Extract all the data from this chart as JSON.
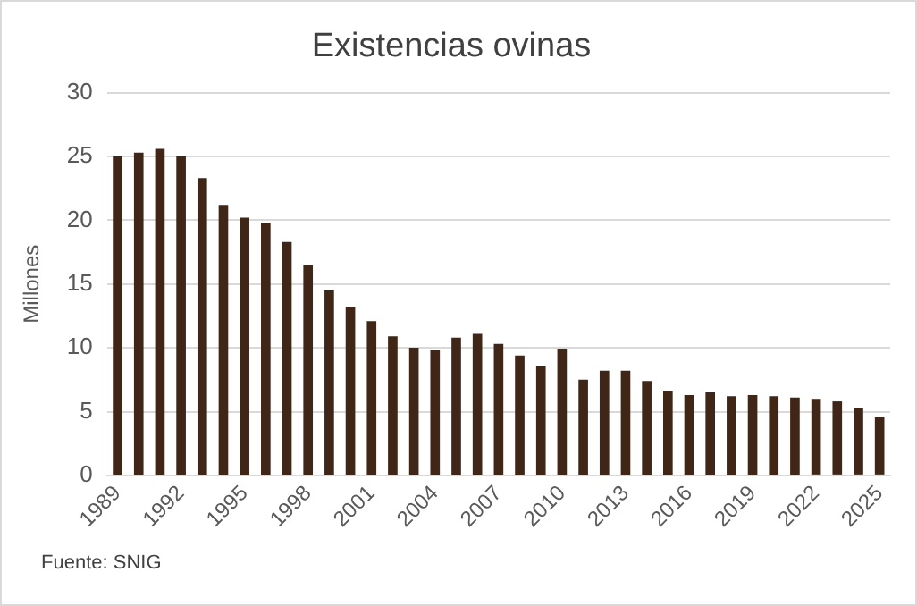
{
  "chart_data": {
    "type": "bar",
    "title": "Existencias ovinas",
    "ylabel": "Millones",
    "categories": [
      "1989",
      null,
      null,
      "1992",
      null,
      null,
      "1995",
      null,
      null,
      "1998",
      null,
      null,
      "2001",
      null,
      null,
      "2004",
      null,
      null,
      "2007",
      null,
      null,
      "2010",
      null,
      null,
      "2013",
      null,
      null,
      "2016",
      null,
      null,
      "2019",
      null,
      null,
      "2022",
      null,
      null,
      "2025"
    ],
    "values": [
      25.0,
      25.3,
      25.6,
      25.0,
      23.3,
      21.2,
      20.2,
      19.8,
      18.3,
      16.5,
      14.5,
      13.2,
      12.1,
      10.9,
      10.0,
      9.8,
      10.8,
      11.1,
      10.3,
      9.4,
      8.6,
      9.9,
      7.5,
      8.2,
      8.2,
      7.4,
      6.6,
      6.3,
      6.5,
      6.2,
      6.3,
      6.2,
      6.1,
      6.0,
      5.8,
      5.3,
      4.6
    ],
    "color": "#3f2616",
    "ylim": [
      0,
      30
    ],
    "yticks": [
      0,
      5,
      10,
      15,
      20,
      25,
      30
    ],
    "grid": "y",
    "legend": false,
    "annotations": [
      "Fuente: SNIG"
    ]
  }
}
